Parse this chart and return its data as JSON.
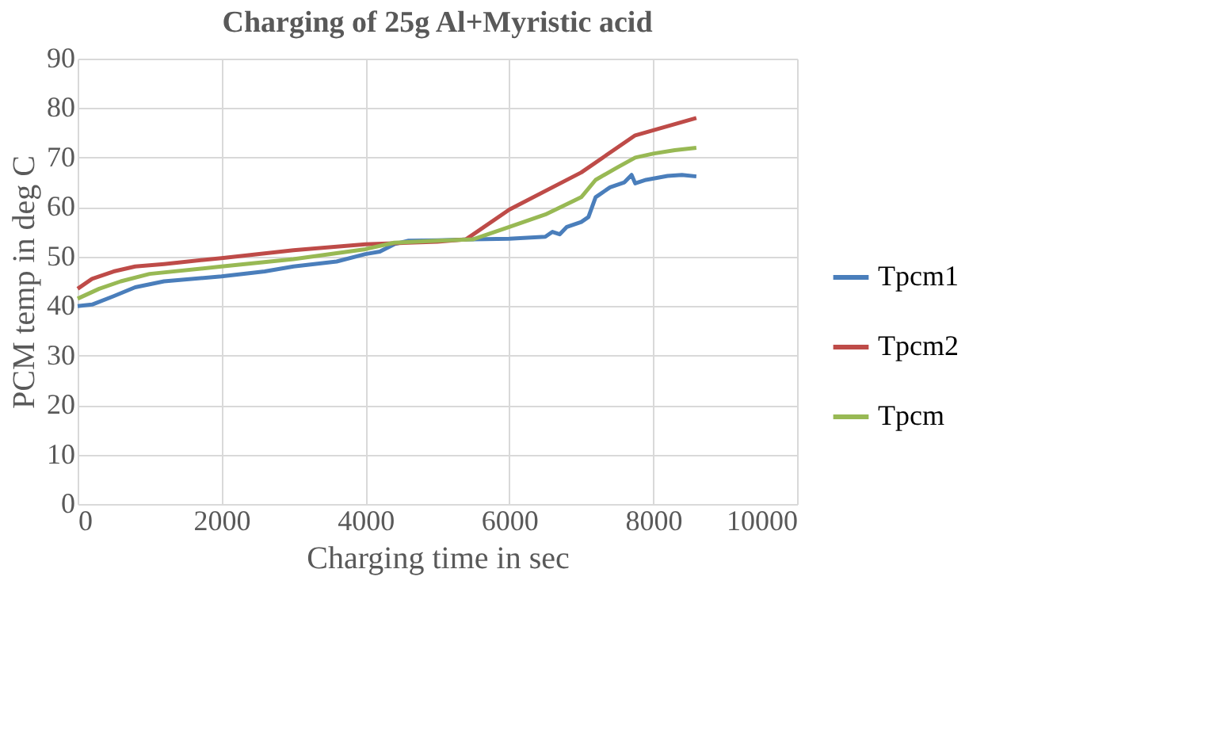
{
  "chart_data": {
    "type": "line",
    "title": "Charging of 25g Al+Myristic acid",
    "xlabel": "Charging time in sec",
    "ylabel": "PCM temp in deg C",
    "xlim": [
      0,
      10000
    ],
    "xticks": [
      0,
      2000,
      4000,
      6000,
      8000,
      10000
    ],
    "ylim": [
      0,
      90
    ],
    "yticks": [
      0,
      10,
      20,
      30,
      40,
      50,
      60,
      70,
      80,
      90
    ],
    "grid": true,
    "legend": "right",
    "marker": "none",
    "line_style": "solid",
    "series": [
      {
        "name": "Tpcm1",
        "color": "#4a7ebb",
        "x": [
          0,
          200,
          500,
          800,
          1200,
          2000,
          2600,
          3000,
          3600,
          4000,
          4200,
          4400,
          4600,
          5000,
          5500,
          6000,
          6500,
          6600,
          6700,
          6800,
          7000,
          7100,
          7200,
          7400,
          7600,
          7700,
          7750,
          7900,
          8200,
          8400,
          8600
        ],
        "values": [
          40,
          40.3,
          42,
          43.8,
          45,
          46,
          47,
          48,
          49,
          50.5,
          51,
          52.5,
          53.2,
          53.3,
          53.5,
          53.6,
          54,
          55,
          54.5,
          56,
          57,
          58,
          62,
          64,
          65,
          66.5,
          64.8,
          65.5,
          66.3,
          66.5,
          66.2
        ]
      },
      {
        "name": "Tpcm2",
        "color": "#be4b48",
        "x": [
          0,
          200,
          500,
          800,
          1200,
          2000,
          3000,
          4000,
          5000,
          5400,
          6000,
          7000,
          7750,
          8600
        ],
        "values": [
          43.5,
          45.5,
          47,
          48,
          48.5,
          49.7,
          51.3,
          52.5,
          53,
          53.5,
          59.5,
          67,
          74.5,
          78
        ]
      },
      {
        "name": "Tpcm",
        "color": "#98b954",
        "x": [
          0,
          300,
          600,
          1000,
          2000,
          3000,
          4000,
          4400,
          5000,
          5500,
          6000,
          6500,
          7000,
          7200,
          7500,
          7750,
          8000,
          8300,
          8600
        ],
        "values": [
          41.5,
          43.5,
          45,
          46.5,
          48,
          49.5,
          51.5,
          52.8,
          53.2,
          53.5,
          56,
          58.5,
          62,
          65.5,
          68,
          70,
          70.8,
          71.5,
          72
        ]
      }
    ]
  }
}
